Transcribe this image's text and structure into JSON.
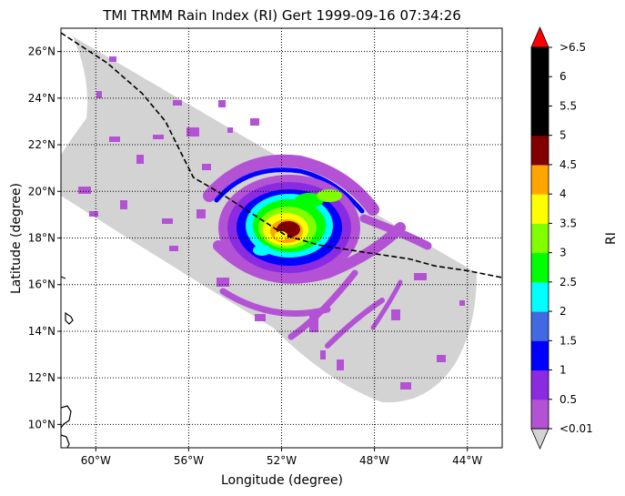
{
  "title": "TMI TRMM Rain Index (RI) Gert 1999-09-16 07:34:26",
  "map": {
    "xlabel": "Longitude (degree)",
    "ylabel": "Latitude (degree)",
    "lon_range": [
      -61.5,
      -42.5
    ],
    "lat_range": [
      9,
      27
    ],
    "lon_ticks": [
      {
        "value": -60,
        "label": "60°W"
      },
      {
        "value": -56,
        "label": "56°W"
      },
      {
        "value": -52,
        "label": "52°W"
      },
      {
        "value": -48,
        "label": "48°W"
      },
      {
        "value": -44,
        "label": "44°W"
      }
    ],
    "lat_ticks": [
      {
        "value": 10,
        "label": "10°N"
      },
      {
        "value": 12,
        "label": "12°N"
      },
      {
        "value": 14,
        "label": "14°N"
      },
      {
        "value": 16,
        "label": "16°N"
      },
      {
        "value": 18,
        "label": "18°N"
      },
      {
        "value": 20,
        "label": "20°N"
      },
      {
        "value": 22,
        "label": "22°N"
      },
      {
        "value": 24,
        "label": "24°N"
      },
      {
        "value": 26,
        "label": "26°N"
      }
    ],
    "gridlines": "dotted",
    "swath_fill": "#d3d3d3",
    "storm_center": {
      "lon": -51.6,
      "lat": 18.1
    },
    "track": [
      [
        -61.5,
        26.8
      ],
      [
        -59.5,
        25.5
      ],
      [
        -58.0,
        24.2
      ],
      [
        -57.0,
        23.0
      ],
      [
        -56.5,
        22.0
      ],
      [
        -55.8,
        20.6
      ],
      [
        -54.6,
        19.9
      ],
      [
        -53.2,
        19.0
      ],
      [
        -51.8,
        18.1
      ],
      [
        -50.4,
        17.7
      ],
      [
        -48.5,
        17.4
      ],
      [
        -46.5,
        17.1
      ],
      [
        -45.4,
        16.8
      ],
      [
        -44.0,
        16.6
      ],
      [
        -42.5,
        16.3
      ]
    ]
  },
  "colorbar": {
    "label": "RI",
    "levels": [
      {
        "label": "<0.01",
        "color": "#b452d6"
      },
      {
        "label": "0.5",
        "color": "#8a2be2"
      },
      {
        "label": "1",
        "color": "#0000ff"
      },
      {
        "label": "1.5",
        "color": "#4169e1"
      },
      {
        "label": "2",
        "color": "#00ffff"
      },
      {
        "label": "2.5",
        "color": "#00ff00"
      },
      {
        "label": "3",
        "color": "#7fff00"
      },
      {
        "label": "3.5",
        "color": "#ffff00"
      },
      {
        "label": "4",
        "color": "#ffa500"
      },
      {
        "label": "4.5",
        "color": "#800000"
      },
      {
        "label": "5",
        "color": "#000000"
      },
      {
        "label": "5.5",
        "color": "#000000"
      },
      {
        "label": "6",
        "color": "#000000"
      },
      {
        "label": ">6.5",
        "color": "#ff0000"
      }
    ],
    "under_color": "#d3d3d3",
    "over_color": "#ff0000"
  }
}
